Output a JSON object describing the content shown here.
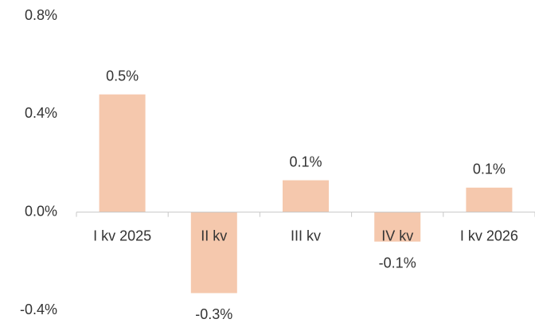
{
  "chart_data": {
    "type": "bar",
    "categories": [
      "I kv 2025",
      "II kv",
      "III kv",
      "IV kv",
      "I kv 2026"
    ],
    "values": [
      0.48,
      -0.33,
      0.13,
      -0.12,
      0.1
    ],
    "value_labels": [
      "0.5%",
      "-0.3%",
      "0.1%",
      "-0.1%",
      "0.1%"
    ],
    "color": "#f5c8ad",
    "ylim": [
      -0.4,
      0.8
    ],
    "yticks": [
      {
        "value": -0.4,
        "label": "-0.4%"
      },
      {
        "value": 0,
        "label": "0.0%"
      },
      {
        "value": 0.4,
        "label": "0.4%"
      },
      {
        "value": 0.8,
        "label": "0.8%"
      }
    ],
    "grid": false
  }
}
